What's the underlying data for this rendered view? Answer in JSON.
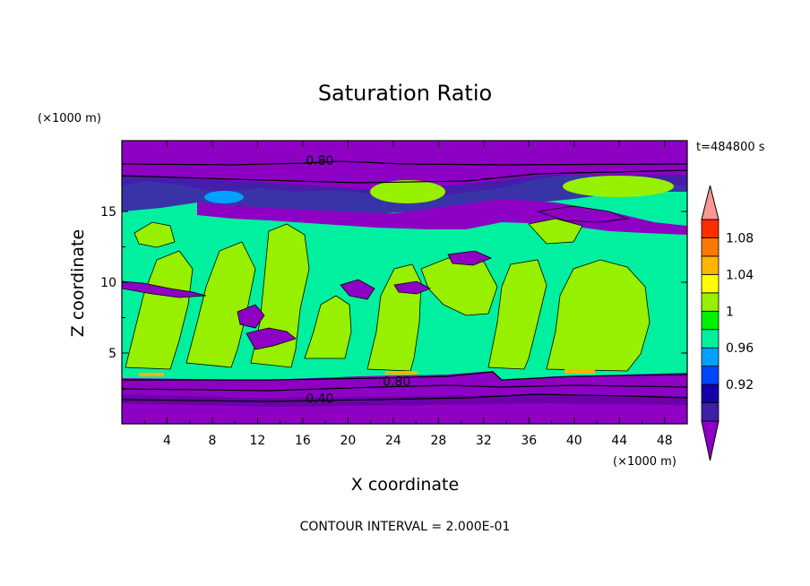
{
  "chart_data": {
    "type": "heatmap",
    "title": "Saturation Ratio",
    "xlabel": "X coordinate",
    "ylabel": "Z coordinate",
    "x_unit": "(×1000 m)",
    "y_unit": "(×1000 m)",
    "time_label": "t=484800 s",
    "footer": "CONTOUR INTERVAL = 2.000E-01",
    "xlim": [
      0,
      50
    ],
    "ylim": [
      0,
      20
    ],
    "x_ticks": [
      "4",
      "8",
      "12",
      "16",
      "20",
      "24",
      "28",
      "32",
      "36",
      "40",
      "44",
      "48"
    ],
    "y_ticks": [
      "5",
      "10",
      "15"
    ],
    "colorbar": {
      "labels": [
        "0.92",
        "0.96",
        "1",
        "1.04",
        "1.08"
      ],
      "colors": [
        "#8d00c4",
        "#3e1fa8",
        "#1600a8",
        "#0046ff",
        "#00a0ff",
        "#00f0a0",
        "#00f000",
        "#96f000",
        "#ffff00",
        "#ffb400",
        "#ff7800",
        "#ff2d00",
        "#ff9696"
      ]
    },
    "contour_labels": [
      {
        "text": "0.80",
        "x": 17.5,
        "z": 18.6
      },
      {
        "text": "0.80",
        "x": 24.3,
        "z": 3.0
      },
      {
        "text": "0.40",
        "x": 17.5,
        "z": 1.8
      }
    ],
    "layers_z": {
      "lower_dry": [
        0,
        3.3
      ],
      "moist": [
        3.3,
        14.3
      ],
      "upper_dry": [
        16.0,
        20
      ]
    }
  }
}
